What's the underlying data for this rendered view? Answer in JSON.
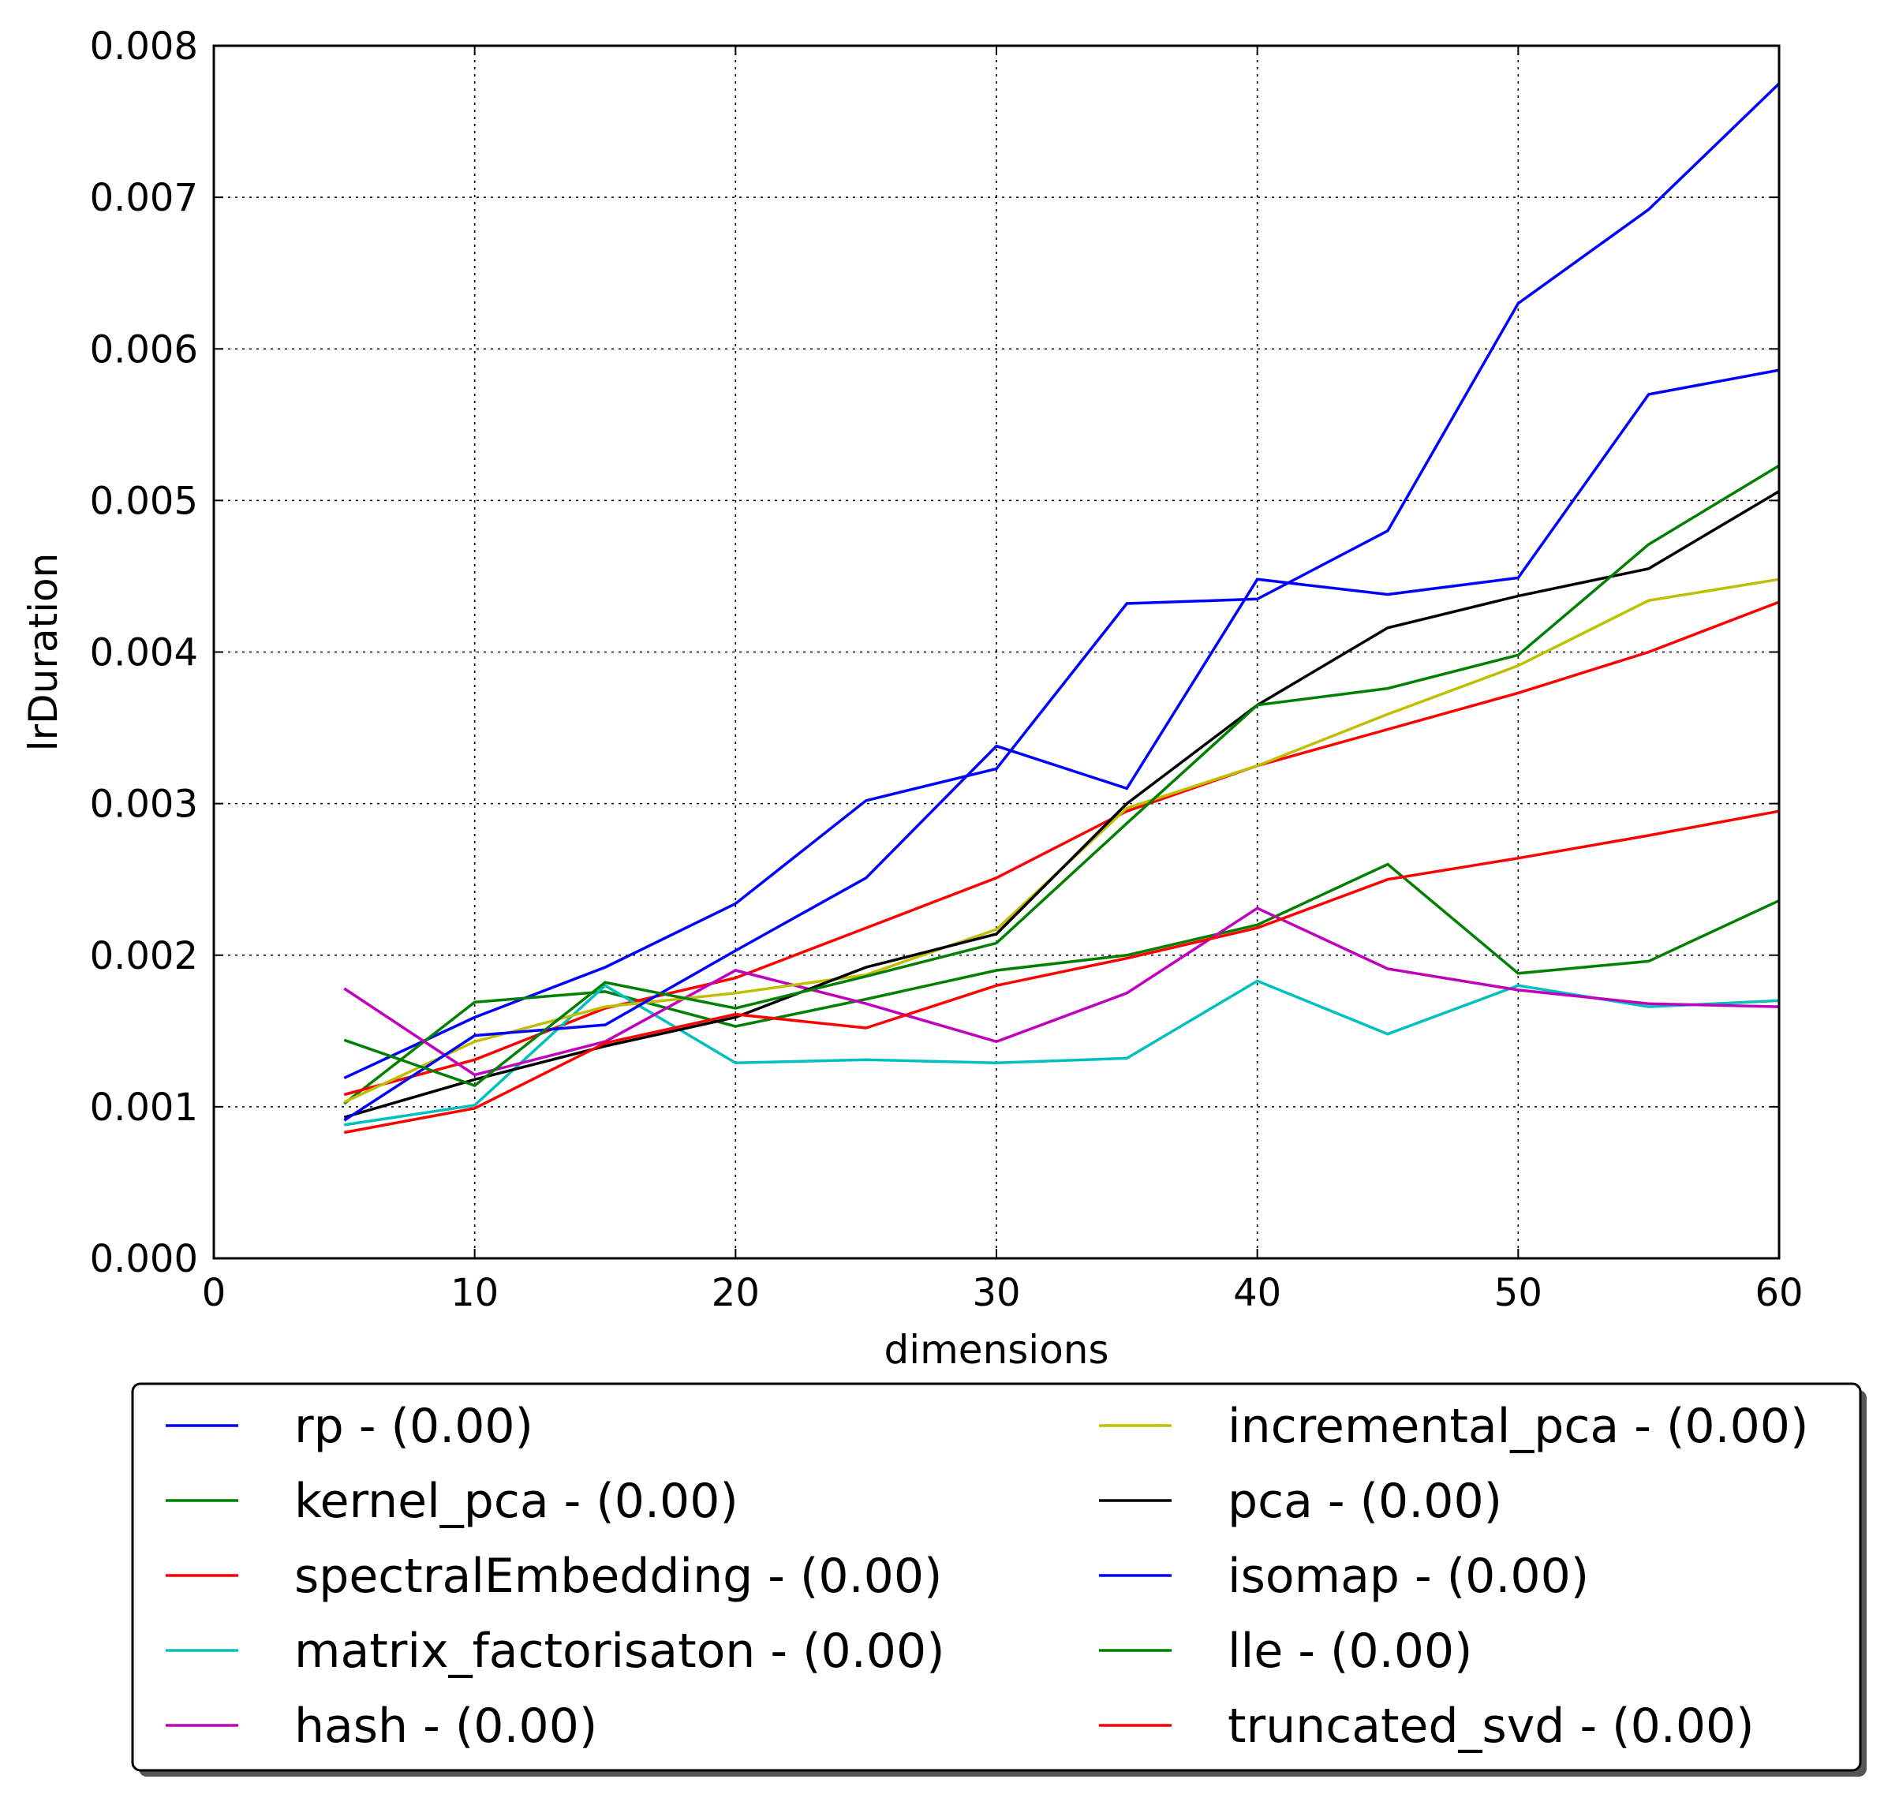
{
  "chart_data": {
    "type": "line",
    "title": "",
    "xlabel": "dimensions",
    "ylabel": "lrDuration",
    "xlim": [
      0,
      60
    ],
    "ylim": [
      0.0,
      0.008
    ],
    "xticks": [
      "0",
      "10",
      "20",
      "30",
      "40",
      "50",
      "60"
    ],
    "yticks": [
      "0.000",
      "0.001",
      "0.002",
      "0.003",
      "0.004",
      "0.005",
      "0.006",
      "0.007",
      "0.008"
    ],
    "grid": true,
    "grid_style": "dotted",
    "legend_position": "below-plot",
    "legend_columns": 2,
    "x": [
      5,
      10,
      15,
      20,
      25,
      30,
      35,
      40,
      45,
      50,
      55,
      60
    ],
    "series": [
      {
        "name": "rp - (0.00)",
        "color": "#0000ff",
        "values": [
          0.00119,
          0.00159,
          0.00192,
          0.00234,
          0.00302,
          0.00323,
          0.00432,
          0.00435,
          0.0048,
          0.0063,
          0.00692,
          0.00775
        ]
      },
      {
        "name": "kernel_pca - (0.00)",
        "color": "#008000",
        "values": [
          0.00102,
          0.00169,
          0.00176,
          0.00153,
          0.00171,
          0.0019,
          0.002,
          0.0022,
          0.0026,
          0.00188,
          0.00196,
          0.00236
        ]
      },
      {
        "name": "spectralEmbedding - (0.00)",
        "color": "#ff0000",
        "values": [
          0.00108,
          0.00131,
          0.00165,
          0.00185,
          0.00218,
          0.00251,
          0.00295,
          0.00325,
          0.00349,
          0.00373,
          0.004,
          0.00433
        ]
      },
      {
        "name": "matrix_factorisaton - (0.00)",
        "color": "#00bfbf",
        "values": [
          0.00088,
          0.00101,
          0.0018,
          0.00129,
          0.00131,
          0.00129,
          0.00132,
          0.00183,
          0.00148,
          0.0018,
          0.00166,
          0.0017
        ]
      },
      {
        "name": "hash - (0.00)",
        "color": "#bf00bf",
        "values": [
          0.00178,
          0.00121,
          0.00143,
          0.0019,
          0.00168,
          0.00143,
          0.00175,
          0.00231,
          0.00191,
          0.00177,
          0.00168,
          0.00166
        ]
      },
      {
        "name": "incremental_pca - (0.00)",
        "color": "#bfbf00",
        "values": [
          0.00103,
          0.00143,
          0.00166,
          0.00175,
          0.00187,
          0.00217,
          0.00297,
          0.00325,
          0.00359,
          0.00391,
          0.00434,
          0.00448
        ]
      },
      {
        "name": "pca - (0.00)",
        "color": "#000000",
        "values": [
          0.00093,
          0.00118,
          0.0014,
          0.00159,
          0.00192,
          0.00214,
          0.003,
          0.00365,
          0.00416,
          0.00437,
          0.00455,
          0.00506
        ]
      },
      {
        "name": "isomap - (0.00)",
        "color": "#0000ff",
        "values": [
          0.00091,
          0.00147,
          0.00154,
          0.00203,
          0.00251,
          0.00338,
          0.0031,
          0.00448,
          0.00438,
          0.00449,
          0.0057,
          0.00586
        ]
      },
      {
        "name": "lle - (0.00)",
        "color": "#008000",
        "values": [
          0.00144,
          0.00114,
          0.00182,
          0.00165,
          0.00186,
          0.00208,
          0.00287,
          0.00365,
          0.00376,
          0.00398,
          0.00471,
          0.00523
        ]
      },
      {
        "name": "truncated_svd - (0.00)",
        "color": "#ff0000",
        "values": [
          0.00083,
          0.00099,
          0.00142,
          0.00161,
          0.00152,
          0.0018,
          0.00198,
          0.00218,
          0.0025,
          0.00264,
          0.00279,
          0.00295
        ]
      }
    ]
  }
}
